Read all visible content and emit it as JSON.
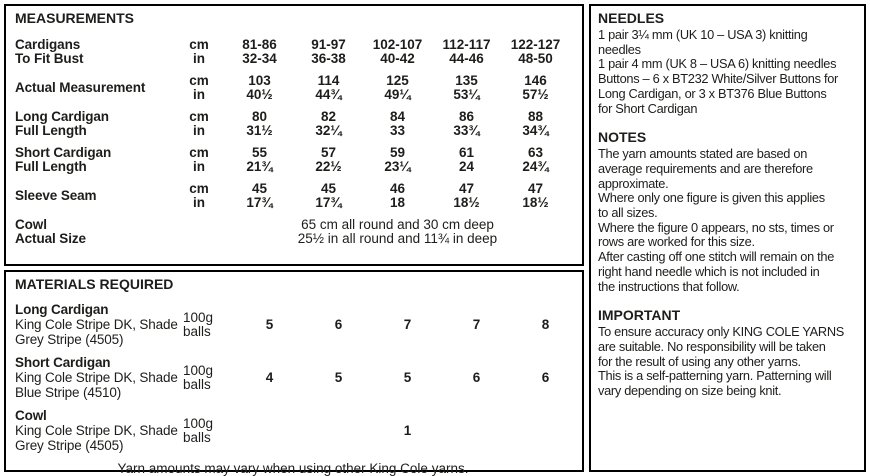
{
  "colors": {
    "text": "#1d1d1b",
    "border": "#000000",
    "background": "#ffffff"
  },
  "measurements": {
    "title": "MEASUREMENTS",
    "unit_cm": "cm",
    "unit_in": "in",
    "rows": [
      {
        "label_line1": "Cardigans",
        "label_line2": "To Fit Bust",
        "cm": [
          "81-86",
          "91-97",
          "102-107",
          "112-117",
          "122-127"
        ],
        "in": [
          "32-34",
          "36-38",
          "40-42",
          "44-46",
          "48-50"
        ]
      },
      {
        "label_line1": "Actual Measurement",
        "label_line2": "",
        "cm": [
          "103",
          "114",
          "125",
          "135",
          "146"
        ],
        "in": [
          "40½",
          "44¾",
          "49¼",
          "53¼",
          "57½"
        ]
      },
      {
        "label_line1": "Long Cardigan",
        "label_line2": "Full Length",
        "cm": [
          "80",
          "82",
          "84",
          "86",
          "88"
        ],
        "in": [
          "31½",
          "32¼",
          "33",
          "33¾",
          "34¾"
        ]
      },
      {
        "label_line1": "Short Cardigan",
        "label_line2": "Full Length",
        "cm": [
          "55",
          "57",
          "59",
          "61",
          "63"
        ],
        "in": [
          "21¾",
          "22½",
          "23¼",
          "24",
          "24¾"
        ]
      },
      {
        "label_line1": "Sleeve Seam",
        "label_line2": "",
        "cm": [
          "45",
          "45",
          "46",
          "47",
          "47"
        ],
        "in": [
          "17¾",
          "17¾",
          "18",
          "18½",
          "18½"
        ]
      }
    ],
    "cowl": {
      "label_line1": "Cowl",
      "label_line2": "Actual Size",
      "value_line1": "65 cm all round and 30 cm deep",
      "value_line2": "25½ in all round and 11¾ in deep"
    }
  },
  "materials": {
    "title": "MATERIALS REQUIRED",
    "unit_line1": "100g",
    "unit_line2": "balls",
    "rows": [
      {
        "name": "Long Cardigan",
        "desc_line1": "King Cole Stripe DK, Shade",
        "desc_line2": "Grey Stripe (4505)",
        "values": [
          "5",
          "6",
          "7",
          "7",
          "8"
        ]
      },
      {
        "name": "Short Cardigan",
        "desc_line1": "King Cole Stripe DK, Shade",
        "desc_line2": "Blue Stripe (4510)",
        "values": [
          "4",
          "5",
          "5",
          "6",
          "6"
        ]
      },
      {
        "name": "Cowl",
        "desc_line1": "King Cole Stripe DK, Shade",
        "desc_line2": "Grey Stripe (4505)",
        "values": [
          "",
          "",
          "1",
          "",
          ""
        ]
      }
    ],
    "footnote": "Yarn amounts may vary when using other King Cole yarns."
  },
  "sidebar": {
    "needles": {
      "title": "NEEDLES",
      "lines": [
        "1 pair 3¼ mm (UK 10 – USA 3) knitting",
        "needles",
        "1 pair 4 mm (UK 8 – USA 6) knitting needles",
        "Buttons – 6 x BT232 White/Silver Buttons for",
        "Long Cardigan, or 3 x BT376 Blue Buttons",
        "for Short Cardigan"
      ]
    },
    "notes": {
      "title": "NOTES",
      "lines": [
        "The yarn amounts stated are based on",
        "average requirements and are therefore",
        "approximate.",
        "Where only one figure is given this applies",
        "to all sizes.",
        "Where the figure 0 appears, no sts, times or",
        "rows are worked for this size.",
        "After casting off one stitch will remain on the",
        "right hand needle which is not included in",
        "the instructions that follow."
      ]
    },
    "important": {
      "title": "IMPORTANT",
      "lines": [
        "To ensure accuracy only KING COLE YARNS",
        "are suitable. No responsibility will be taken",
        "for the result of using any other yarns.",
        "This is a self-patterning yarn. Patterning will",
        "vary depending on size being knit."
      ]
    }
  }
}
